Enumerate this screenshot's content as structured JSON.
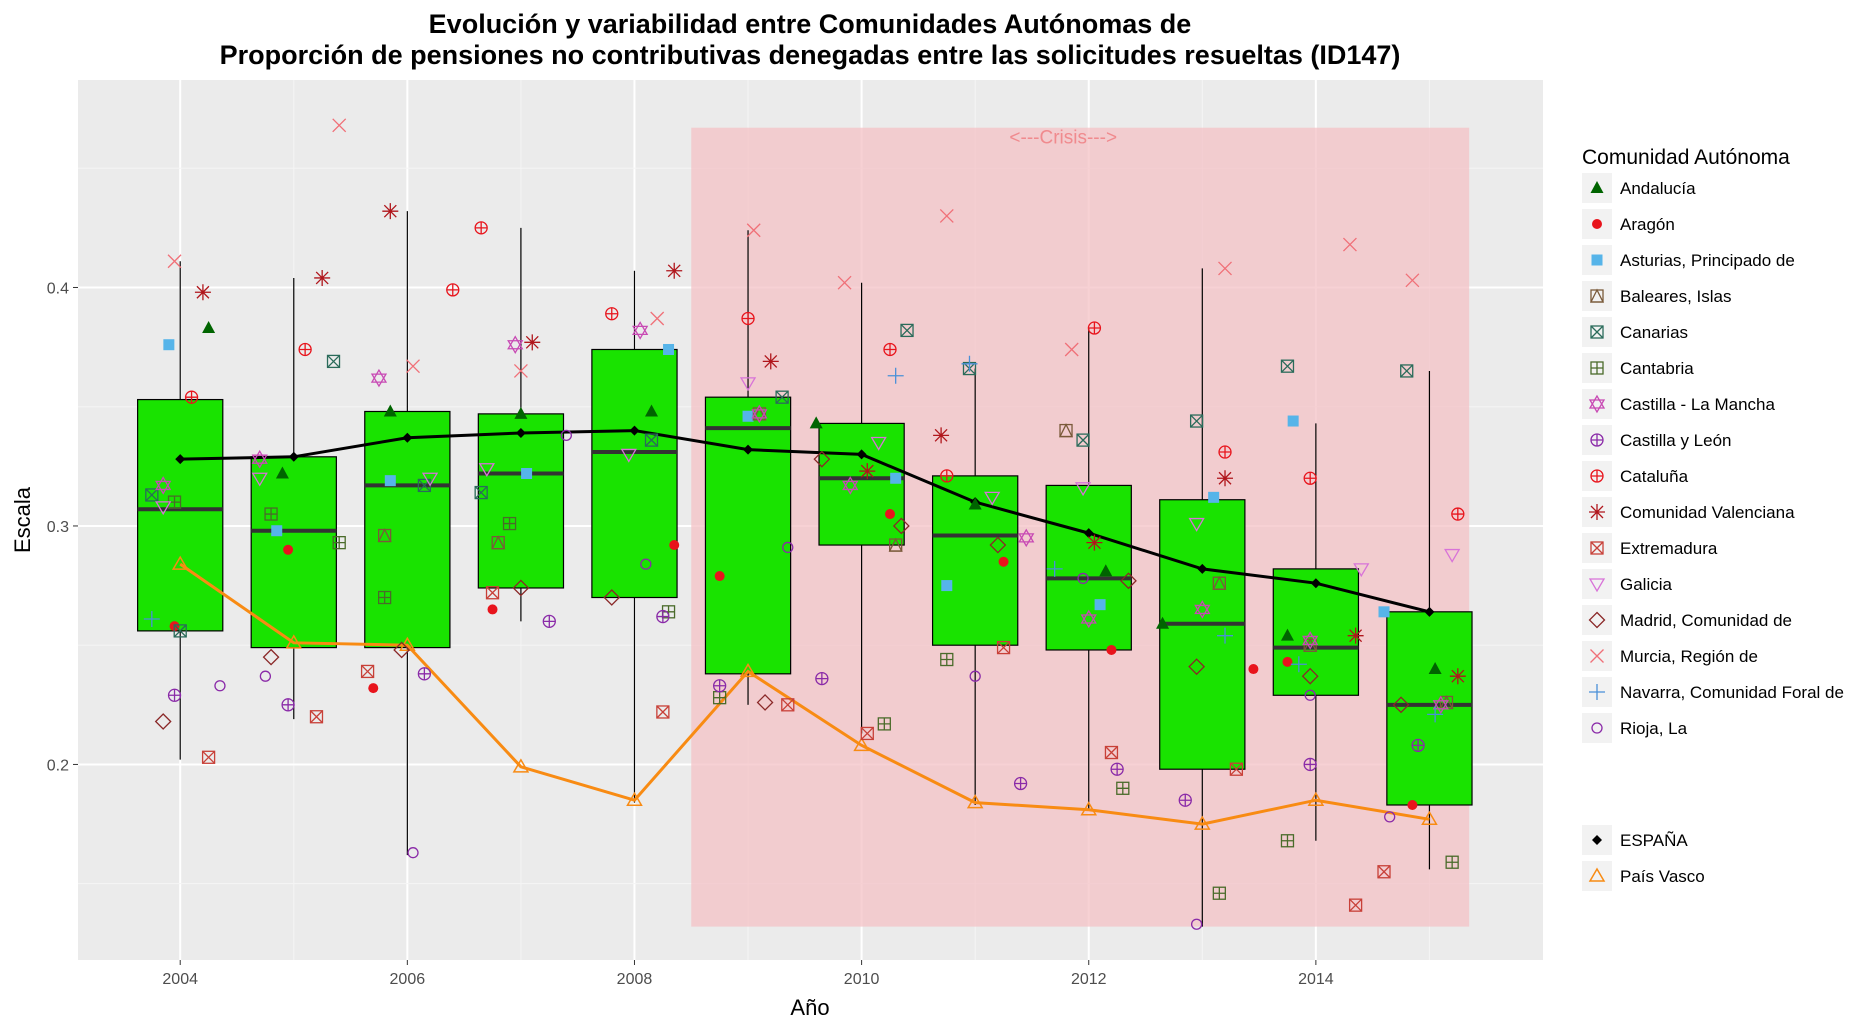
{
  "chart_data": {
    "type": "box",
    "title_line1": "Evolución y variabilidad entre Comunidades Autónomas de",
    "title_line2": "Proporción de pensiones no contributivas denegadas entre las solicitudes resueltas (ID147)",
    "xlabel": "Año",
    "ylabel": "Escala",
    "xlim": [
      2003.1,
      2016.0
    ],
    "ylim": [
      0.118,
      0.487
    ],
    "x_ticks": [
      2004,
      2006,
      2008,
      2010,
      2012,
      2014
    ],
    "y_ticks": [
      0.2,
      0.3,
      0.4
    ],
    "crisis": {
      "label": "<---Crisis--->",
      "x_start": 2008.5,
      "x_end": 2015.35,
      "y_low": 0.132,
      "y_high": 0.467,
      "color": "#f4c2c6"
    },
    "box_fill": "#19e300",
    "boxes": [
      {
        "year": 2004,
        "whisker_low": 0.202,
        "q1": 0.256,
        "median": 0.307,
        "q3": 0.353,
        "whisker_high": 0.411
      },
      {
        "year": 2005,
        "whisker_low": 0.219,
        "q1": 0.249,
        "median": 0.298,
        "q3": 0.329,
        "whisker_high": 0.404
      },
      {
        "year": 2006,
        "whisker_low": 0.162,
        "q1": 0.249,
        "median": 0.317,
        "q3": 0.348,
        "whisker_high": 0.432
      },
      {
        "year": 2007,
        "whisker_low": 0.26,
        "q1": 0.274,
        "median": 0.322,
        "q3": 0.347,
        "whisker_high": 0.425
      },
      {
        "year": 2008,
        "whisker_low": 0.184,
        "q1": 0.27,
        "median": 0.331,
        "q3": 0.374,
        "whisker_high": 0.407
      },
      {
        "year": 2009,
        "whisker_low": 0.225,
        "q1": 0.238,
        "median": 0.341,
        "q3": 0.354,
        "whisker_high": 0.424
      },
      {
        "year": 2010,
        "whisker_low": 0.213,
        "q1": 0.292,
        "median": 0.32,
        "q3": 0.343,
        "whisker_high": 0.402
      },
      {
        "year": 2011,
        "whisker_low": 0.183,
        "q1": 0.25,
        "median": 0.296,
        "q3": 0.321,
        "whisker_high": 0.366
      },
      {
        "year": 2012,
        "whisker_low": 0.181,
        "q1": 0.248,
        "median": 0.278,
        "q3": 0.317,
        "whisker_high": 0.383
      },
      {
        "year": 2013,
        "whisker_low": 0.132,
        "q1": 0.198,
        "median": 0.259,
        "q3": 0.311,
        "whisker_high": 0.408
      },
      {
        "year": 2014,
        "whisker_low": 0.168,
        "q1": 0.229,
        "median": 0.249,
        "q3": 0.282,
        "whisker_high": 0.343
      },
      {
        "year": 2015,
        "whisker_low": 0.156,
        "q1": 0.183,
        "median": 0.225,
        "q3": 0.264,
        "whisker_high": 0.365
      }
    ],
    "legend_title": "Comunidad Autónoma",
    "legend_position": "right",
    "regions": [
      {
        "name": "Andalucía",
        "shape": "triangle",
        "color": "#006400",
        "points": [
          [
            2004.25,
            0.383
          ],
          [
            2004.9,
            0.322
          ],
          [
            2005.85,
            0.348
          ],
          [
            2007.0,
            0.347
          ],
          [
            2008.15,
            0.348
          ],
          [
            2009.6,
            0.343
          ],
          [
            2011.0,
            0.309
          ],
          [
            2012.15,
            0.281
          ],
          [
            2012.65,
            0.259
          ],
          [
            2013.75,
            0.254
          ],
          [
            2015.05,
            0.24
          ]
        ]
      },
      {
        "name": "Aragón",
        "shape": "circle",
        "color": "#e8141c",
        "points": [
          [
            2003.95,
            0.258
          ],
          [
            2004.95,
            0.29
          ],
          [
            2005.7,
            0.232
          ],
          [
            2006.75,
            0.265
          ],
          [
            2008.35,
            0.292
          ],
          [
            2008.75,
            0.279
          ],
          [
            2010.25,
            0.305
          ],
          [
            2011.25,
            0.285
          ],
          [
            2012.2,
            0.248
          ],
          [
            2013.45,
            0.24
          ],
          [
            2013.75,
            0.243
          ],
          [
            2014.85,
            0.183
          ]
        ]
      },
      {
        "name": "Asturias, Principado de",
        "shape": "square",
        "color": "#56b4e9",
        "points": [
          [
            2003.9,
            0.376
          ],
          [
            2004.85,
            0.298
          ],
          [
            2005.85,
            0.319
          ],
          [
            2007.05,
            0.322
          ],
          [
            2008.3,
            0.374
          ],
          [
            2009.0,
            0.346
          ],
          [
            2010.3,
            0.32
          ],
          [
            2010.75,
            0.275
          ],
          [
            2012.1,
            0.267
          ],
          [
            2013.1,
            0.312
          ],
          [
            2013.8,
            0.344
          ],
          [
            2014.6,
            0.264
          ]
        ]
      },
      {
        "name": "Baleares, Islas",
        "shape": "square-triangle",
        "color": "#7a5a3a",
        "points": [
          [
            2005.8,
            0.296
          ],
          [
            2006.8,
            0.293
          ],
          [
            2009.1,
            0.347
          ],
          [
            2010.3,
            0.292
          ],
          [
            2011.8,
            0.34
          ],
          [
            2013.15,
            0.276
          ],
          [
            2013.95,
            0.25
          ],
          [
            2015.15,
            0.226
          ]
        ]
      },
      {
        "name": "Canarias",
        "shape": "square-x",
        "color": "#2a6b5a",
        "points": [
          [
            2003.75,
            0.313
          ],
          [
            2004.0,
            0.256
          ],
          [
            2005.35,
            0.369
          ],
          [
            2006.15,
            0.317
          ],
          [
            2006.65,
            0.314
          ],
          [
            2008.15,
            0.336
          ],
          [
            2009.3,
            0.354
          ],
          [
            2010.4,
            0.382
          ],
          [
            2010.95,
            0.366
          ],
          [
            2011.95,
            0.336
          ],
          [
            2012.95,
            0.344
          ],
          [
            2013.75,
            0.367
          ],
          [
            2014.8,
            0.365
          ]
        ]
      },
      {
        "name": "Cantabria",
        "shape": "square-plus",
        "color": "#4a6b2a",
        "points": [
          [
            2003.95,
            0.31
          ],
          [
            2004.8,
            0.305
          ],
          [
            2005.4,
            0.293
          ],
          [
            2005.8,
            0.27
          ],
          [
            2006.9,
            0.301
          ],
          [
            2008.3,
            0.264
          ],
          [
            2008.75,
            0.228
          ],
          [
            2010.2,
            0.217
          ],
          [
            2010.75,
            0.244
          ],
          [
            2012.3,
            0.19
          ],
          [
            2013.15,
            0.146
          ],
          [
            2013.75,
            0.168
          ],
          [
            2015.2,
            0.159
          ]
        ]
      },
      {
        "name": "Castilla - La Mancha",
        "shape": "star-david",
        "color": "#c84ab4",
        "points": [
          [
            2003.85,
            0.317
          ],
          [
            2004.7,
            0.328
          ],
          [
            2005.75,
            0.362
          ],
          [
            2006.95,
            0.376
          ],
          [
            2008.05,
            0.382
          ],
          [
            2009.1,
            0.347
          ],
          [
            2009.9,
            0.317
          ],
          [
            2011.45,
            0.295
          ],
          [
            2012.0,
            0.261
          ],
          [
            2013.0,
            0.265
          ],
          [
            2013.95,
            0.252
          ],
          [
            2015.1,
            0.225
          ]
        ]
      },
      {
        "name": "Castilla y León",
        "shape": "circle-plus",
        "color": "#8a2aa8",
        "points": [
          [
            2003.95,
            0.229
          ],
          [
            2004.95,
            0.225
          ],
          [
            2006.15,
            0.238
          ],
          [
            2007.25,
            0.26
          ],
          [
            2008.25,
            0.262
          ],
          [
            2008.75,
            0.233
          ],
          [
            2009.65,
            0.236
          ],
          [
            2011.4,
            0.192
          ],
          [
            2012.25,
            0.198
          ],
          [
            2012.85,
            0.185
          ],
          [
            2013.95,
            0.2
          ],
          [
            2014.9,
            0.208
          ]
        ]
      },
      {
        "name": "Cataluña",
        "shape": "circle-plus",
        "color": "#e8141c",
        "points": [
          [
            2004.1,
            0.354
          ],
          [
            2005.1,
            0.374
          ],
          [
            2006.4,
            0.399
          ],
          [
            2006.65,
            0.425
          ],
          [
            2007.8,
            0.389
          ],
          [
            2009.0,
            0.387
          ],
          [
            2010.25,
            0.374
          ],
          [
            2010.75,
            0.321
          ],
          [
            2012.05,
            0.383
          ],
          [
            2013.2,
            0.331
          ],
          [
            2013.95,
            0.32
          ],
          [
            2015.25,
            0.305
          ]
        ]
      },
      {
        "name": "Comunidad Valenciana",
        "shape": "asterisk",
        "color": "#b0161c",
        "points": [
          [
            2004.2,
            0.398
          ],
          [
            2005.25,
            0.404
          ],
          [
            2005.85,
            0.432
          ],
          [
            2007.1,
            0.377
          ],
          [
            2008.35,
            0.407
          ],
          [
            2009.2,
            0.369
          ],
          [
            2010.05,
            0.323
          ],
          [
            2010.7,
            0.338
          ],
          [
            2012.05,
            0.293
          ],
          [
            2013.2,
            0.32
          ],
          [
            2014.35,
            0.254
          ],
          [
            2015.25,
            0.237
          ]
        ]
      },
      {
        "name": "Extremadura",
        "shape": "square-x",
        "color": "#c84038",
        "points": [
          [
            2004.25,
            0.203
          ],
          [
            2005.2,
            0.22
          ],
          [
            2005.65,
            0.239
          ],
          [
            2006.75,
            0.272
          ],
          [
            2008.25,
            0.222
          ],
          [
            2009.35,
            0.225
          ],
          [
            2010.05,
            0.213
          ],
          [
            2011.25,
            0.249
          ],
          [
            2012.2,
            0.205
          ],
          [
            2013.3,
            0.198
          ],
          [
            2014.35,
            0.141
          ],
          [
            2014.6,
            0.155
          ]
        ]
      },
      {
        "name": "Galicia",
        "shape": "triangle-down",
        "color": "#d873d8",
        "points": [
          [
            2003.85,
            0.308
          ],
          [
            2004.7,
            0.32
          ],
          [
            2006.2,
            0.32
          ],
          [
            2006.7,
            0.324
          ],
          [
            2007.95,
            0.33
          ],
          [
            2009.0,
            0.36
          ],
          [
            2010.15,
            0.335
          ],
          [
            2011.15,
            0.312
          ],
          [
            2011.95,
            0.316
          ],
          [
            2012.95,
            0.301
          ],
          [
            2014.4,
            0.282
          ],
          [
            2015.2,
            0.288
          ]
        ]
      },
      {
        "name": "Madrid, Comunidad de",
        "shape": "diamond",
        "color": "#8a2828",
        "points": [
          [
            2003.85,
            0.218
          ],
          [
            2004.8,
            0.245
          ],
          [
            2005.95,
            0.248
          ],
          [
            2007.0,
            0.274
          ],
          [
            2007.8,
            0.27
          ],
          [
            2009.15,
            0.226
          ],
          [
            2009.65,
            0.328
          ],
          [
            2010.35,
            0.3
          ],
          [
            2011.2,
            0.292
          ],
          [
            2012.35,
            0.277
          ],
          [
            2012.95,
            0.241
          ],
          [
            2013.95,
            0.237
          ],
          [
            2014.75,
            0.225
          ]
        ]
      },
      {
        "name": "Murcia, Región de",
        "shape": "x",
        "color": "#f07078",
        "points": [
          [
            2003.95,
            0.411
          ],
          [
            2005.4,
            0.468
          ],
          [
            2006.05,
            0.367
          ],
          [
            2007.0,
            0.365
          ],
          [
            2008.2,
            0.387
          ],
          [
            2009.05,
            0.424
          ],
          [
            2009.85,
            0.402
          ],
          [
            2010.75,
            0.43
          ],
          [
            2011.85,
            0.374
          ],
          [
            2013.2,
            0.408
          ],
          [
            2014.3,
            0.418
          ],
          [
            2014.85,
            0.403
          ]
        ]
      },
      {
        "name": "Navarra, Comunidad Foral de",
        "shape": "plus",
        "color": "#4a90d8",
        "points": [
          [
            2003.75,
            0.261
          ],
          [
            2010.3,
            0.363
          ],
          [
            2010.95,
            0.368
          ],
          [
            2011.7,
            0.282
          ],
          [
            2013.2,
            0.254
          ],
          [
            2013.85,
            0.242
          ],
          [
            2015.05,
            0.221
          ]
        ]
      },
      {
        "name": "Rioja, La",
        "shape": "circle-open",
        "color": "#8a2aa8",
        "points": [
          [
            2004.35,
            0.233
          ],
          [
            2004.75,
            0.237
          ],
          [
            2006.05,
            0.163
          ],
          [
            2007.4,
            0.338
          ],
          [
            2008.1,
            0.284
          ],
          [
            2009.35,
            0.291
          ],
          [
            2011.0,
            0.237
          ],
          [
            2011.95,
            0.278
          ],
          [
            2012.95,
            0.133
          ],
          [
            2013.95,
            0.229
          ],
          [
            2014.65,
            0.178
          ]
        ]
      }
    ],
    "reference_series": [
      {
        "name": "ESPAÑA",
        "shape": "diamond-filled",
        "color": "#000000",
        "x": [
          2004,
          2005,
          2006,
          2007,
          2008,
          2009,
          2010,
          2011,
          2012,
          2013,
          2014,
          2015
        ],
        "values": [
          0.328,
          0.329,
          0.337,
          0.339,
          0.34,
          0.332,
          0.33,
          0.31,
          0.297,
          0.282,
          0.276,
          0.264
        ]
      },
      {
        "name": "País Vasco",
        "shape": "triangle-open",
        "color": "#f88b13",
        "x": [
          2004,
          2005,
          2006,
          2007,
          2008,
          2009,
          2010,
          2011,
          2012,
          2013,
          2014,
          2015
        ],
        "values": [
          0.284,
          0.251,
          0.25,
          0.199,
          0.185,
          0.239,
          0.208,
          0.184,
          0.181,
          0.175,
          0.185,
          0.177
        ]
      }
    ]
  }
}
